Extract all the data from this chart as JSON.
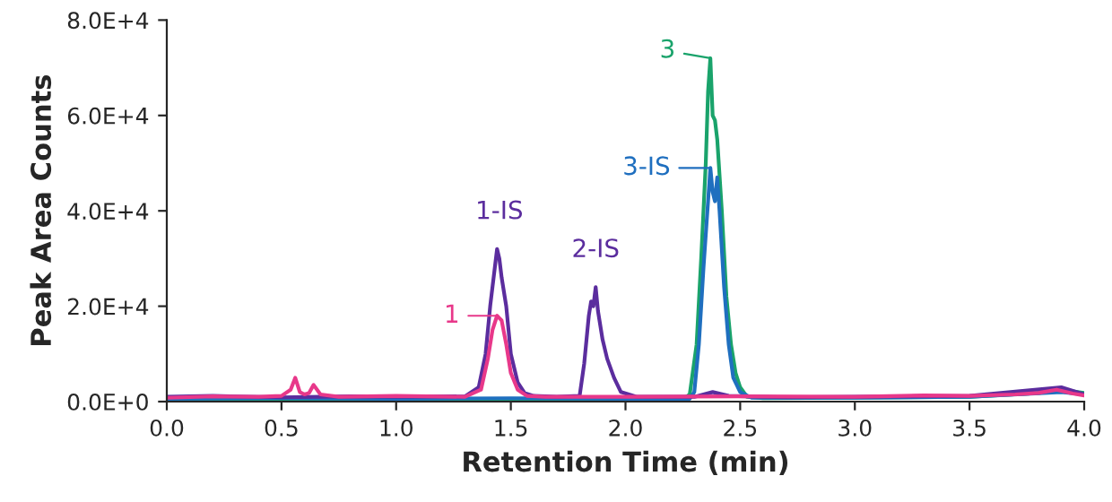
{
  "chart_data": {
    "type": "line",
    "xlabel": "Retention Time (min)",
    "ylabel": "Peak Area Counts",
    "xlim": [
      0,
      4
    ],
    "xticks": [
      {
        "value": 0,
        "label": "0.0"
      },
      {
        "value": 0.5,
        "label": "0.5"
      },
      {
        "value": 1,
        "label": "1.0"
      },
      {
        "value": 1.5,
        "label": "1.5"
      },
      {
        "value": 2,
        "label": "2.0"
      },
      {
        "value": 2.5,
        "label": "2.5"
      },
      {
        "value": 3,
        "label": "3.0"
      },
      {
        "value": 3.5,
        "label": "3.5"
      },
      {
        "value": 4,
        "label": "4.0"
      }
    ],
    "ylim": [
      0,
      80000
    ],
    "yticks": [
      {
        "value": 0,
        "label": "0.0E+0"
      },
      {
        "value": 20000,
        "label": "2.0E+4"
      },
      {
        "value": 40000,
        "label": "4.0E+4"
      },
      {
        "value": 60000,
        "label": "6.0E+4"
      },
      {
        "value": 80000,
        "label": "8.0E+4"
      }
    ],
    "grid": false,
    "legend": false,
    "series": [
      {
        "color": "#1aa36b",
        "x": [
          0,
          0.5,
          1.0,
          1.5,
          2.0,
          2.25,
          2.28,
          2.31,
          2.33,
          2.35,
          2.36,
          2.37,
          2.38,
          2.39,
          2.4,
          2.42,
          2.44,
          2.46,
          2.48,
          2.5,
          2.53,
          2.6,
          3.0,
          3.5,
          3.8,
          3.9,
          4.0
        ],
        "values": [
          500,
          600,
          500,
          500,
          600,
          500,
          1500,
          12000,
          30000,
          50000,
          65000,
          72000,
          60000,
          59000,
          55000,
          40000,
          22000,
          12000,
          6000,
          3000,
          1000,
          700,
          800,
          1000,
          1800,
          2500,
          1800
        ]
      },
      {
        "color": "#1f6fbf",
        "x": [
          0,
          0.5,
          1.0,
          1.5,
          2.0,
          2.28,
          2.3,
          2.32,
          2.34,
          2.36,
          2.37,
          2.38,
          2.39,
          2.4,
          2.41,
          2.43,
          2.45,
          2.47,
          2.5,
          2.55,
          3.0,
          3.5,
          3.9,
          4.0
        ],
        "values": [
          600,
          700,
          600,
          700,
          600,
          600,
          2000,
          12000,
          28000,
          42000,
          49000,
          44000,
          42000,
          47000,
          40000,
          24000,
          12000,
          5000,
          2000,
          800,
          800,
          1000,
          2000,
          1500
        ]
      },
      {
        "color": "#5b2d9e",
        "x": [
          0,
          0.2,
          0.5,
          0.8,
          1.0,
          1.3,
          1.36,
          1.39,
          1.41,
          1.43,
          1.44,
          1.45,
          1.46,
          1.48,
          1.5,
          1.53,
          1.56,
          1.6,
          1.7,
          1.8,
          1.82,
          1.84,
          1.85,
          1.86,
          1.87,
          1.88,
          1.9,
          1.92,
          1.95,
          1.98,
          2.05,
          2.3,
          2.38,
          2.45,
          2.7,
          3.0,
          3.5,
          3.9,
          4.0
        ],
        "values": [
          1000,
          1200,
          900,
          1100,
          1000,
          1100,
          3000,
          10000,
          20000,
          28000,
          32000,
          30000,
          26000,
          20000,
          10000,
          4000,
          1800,
          1200,
          1000,
          1200,
          8000,
          18000,
          21000,
          20000,
          24000,
          19000,
          13000,
          9000,
          5000,
          2000,
          1000,
          1000,
          2000,
          1200,
          900,
          1000,
          1200,
          3000,
          1500
        ]
      },
      {
        "color": "#e8388a",
        "x": [
          0,
          0.2,
          0.4,
          0.5,
          0.54,
          0.56,
          0.58,
          0.6,
          0.62,
          0.64,
          0.67,
          0.75,
          1.0,
          1.3,
          1.37,
          1.4,
          1.42,
          1.44,
          1.45,
          1.46,
          1.48,
          1.5,
          1.53,
          1.57,
          1.65,
          2.0,
          2.5,
          3.0,
          3.3,
          3.5,
          3.7,
          3.8,
          3.88,
          3.95,
          4.0
        ],
        "values": [
          800,
          1100,
          1000,
          1200,
          2500,
          5000,
          2000,
          1500,
          1800,
          3500,
          1500,
          1000,
          1200,
          1000,
          2500,
          9000,
          15000,
          18000,
          17500,
          17000,
          12000,
          6000,
          2500,
          1200,
          1000,
          1000,
          1100,
          1000,
          1300,
          1200,
          1500,
          1800,
          2500,
          1700,
          1300
        ]
      }
    ],
    "annotations": [
      {
        "text": "1-IS",
        "x": 1.45,
        "y": 32000
      },
      {
        "text": "2-IS",
        "x": 1.87,
        "y": 24000
      },
      {
        "text": "1",
        "x": 1.44,
        "y": 18000
      },
      {
        "text": "3",
        "x": 2.37,
        "y": 72000
      },
      {
        "text": "3-IS",
        "x": 2.37,
        "y": 49000
      }
    ]
  }
}
